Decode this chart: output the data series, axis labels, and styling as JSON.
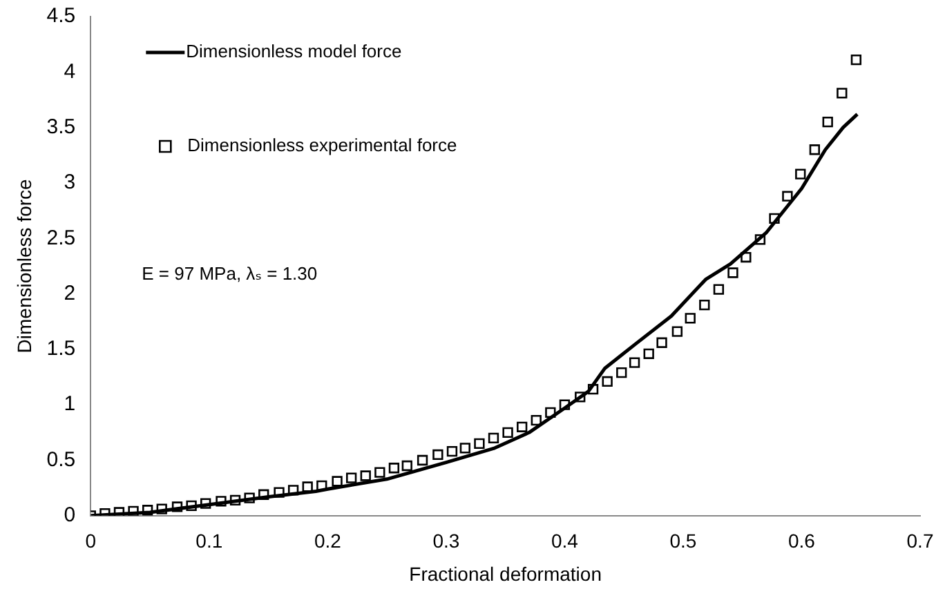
{
  "chart_data": {
    "type": "scatter",
    "xlabel": "Fractional deformation",
    "ylabel": "Dimensionless force",
    "xlim": [
      0,
      0.7
    ],
    "xticks": [
      0,
      0.1,
      0.2,
      0.3,
      0.4,
      0.5,
      0.6,
      0.7
    ],
    "ylim": [
      0,
      4.5
    ],
    "yticks": [
      0,
      0.5,
      1,
      1.5,
      2,
      2.5,
      3,
      3.5,
      4,
      4.5
    ],
    "grid": false,
    "legend": "top left",
    "annotations": [
      "E = 97 MPa, λₛ = 1.30"
    ],
    "series": [
      {
        "name": "Dimensionless model force",
        "type": "line",
        "color": "#000000",
        "marker": "none",
        "line_style": "solid",
        "x": [
          0,
          0.05,
          0.1,
          0.15,
          0.19,
          0.2,
          0.25,
          0.3,
          0.341,
          0.37,
          0.4,
          0.42,
          0.434,
          0.46,
          0.49,
          0.519,
          0.54,
          0.57,
          0.6,
          0.62,
          0.635,
          0.647
        ],
        "values": [
          0,
          0.03,
          0.1,
          0.17,
          0.22,
          0.24,
          0.33,
          0.48,
          0.61,
          0.75,
          0.97,
          1.12,
          1.33,
          1.55,
          1.8,
          2.13,
          2.27,
          2.55,
          2.95,
          3.3,
          3.5,
          3.62
        ]
      },
      {
        "name": "Dimensionless experimental force",
        "type": "scatter",
        "color": "#000000",
        "marker": "square",
        "x": [
          0,
          0.012,
          0.024,
          0.036,
          0.048,
          0.06,
          0.073,
          0.085,
          0.097,
          0.11,
          0.122,
          0.134,
          0.146,
          0.159,
          0.171,
          0.183,
          0.195,
          0.208,
          0.22,
          0.232,
          0.244,
          0.256,
          0.267,
          0.28,
          0.293,
          0.305,
          0.316,
          0.328,
          0.34,
          0.352,
          0.364,
          0.376,
          0.388,
          0.4,
          0.413,
          0.424,
          0.436,
          0.448,
          0.459,
          0.471,
          0.482,
          0.495,
          0.506,
          0.518,
          0.53,
          0.542,
          0.553,
          0.565,
          0.577,
          0.588,
          0.599,
          0.611,
          0.622,
          0.634,
          0.646
        ],
        "values": [
          0,
          0.02,
          0.03,
          0.04,
          0.05,
          0.06,
          0.08,
          0.09,
          0.11,
          0.13,
          0.14,
          0.16,
          0.19,
          0.21,
          0.23,
          0.26,
          0.27,
          0.31,
          0.34,
          0.36,
          0.39,
          0.43,
          0.45,
          0.5,
          0.55,
          0.58,
          0.61,
          0.65,
          0.7,
          0.75,
          0.8,
          0.86,
          0.93,
          1,
          1.07,
          1.14,
          1.21,
          1.29,
          1.38,
          1.46,
          1.56,
          1.66,
          1.78,
          1.9,
          2.04,
          2.19,
          2.33,
          2.49,
          2.68,
          2.88,
          3.08,
          3.3,
          3.55,
          3.81,
          4.11
        ]
      }
    ]
  }
}
